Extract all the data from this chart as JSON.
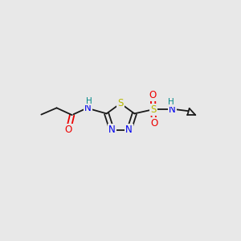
{
  "bg_color": "#e8e8e8",
  "atom_colors": {
    "C": "#000000",
    "N": "#0000ee",
    "O": "#ee0000",
    "S": "#b8b800",
    "H": "#008888"
  },
  "bond_color": "#1a1a1a",
  "font_size_atom": 8.5,
  "fig_size": [
    3.0,
    3.0
  ],
  "dpi": 100
}
